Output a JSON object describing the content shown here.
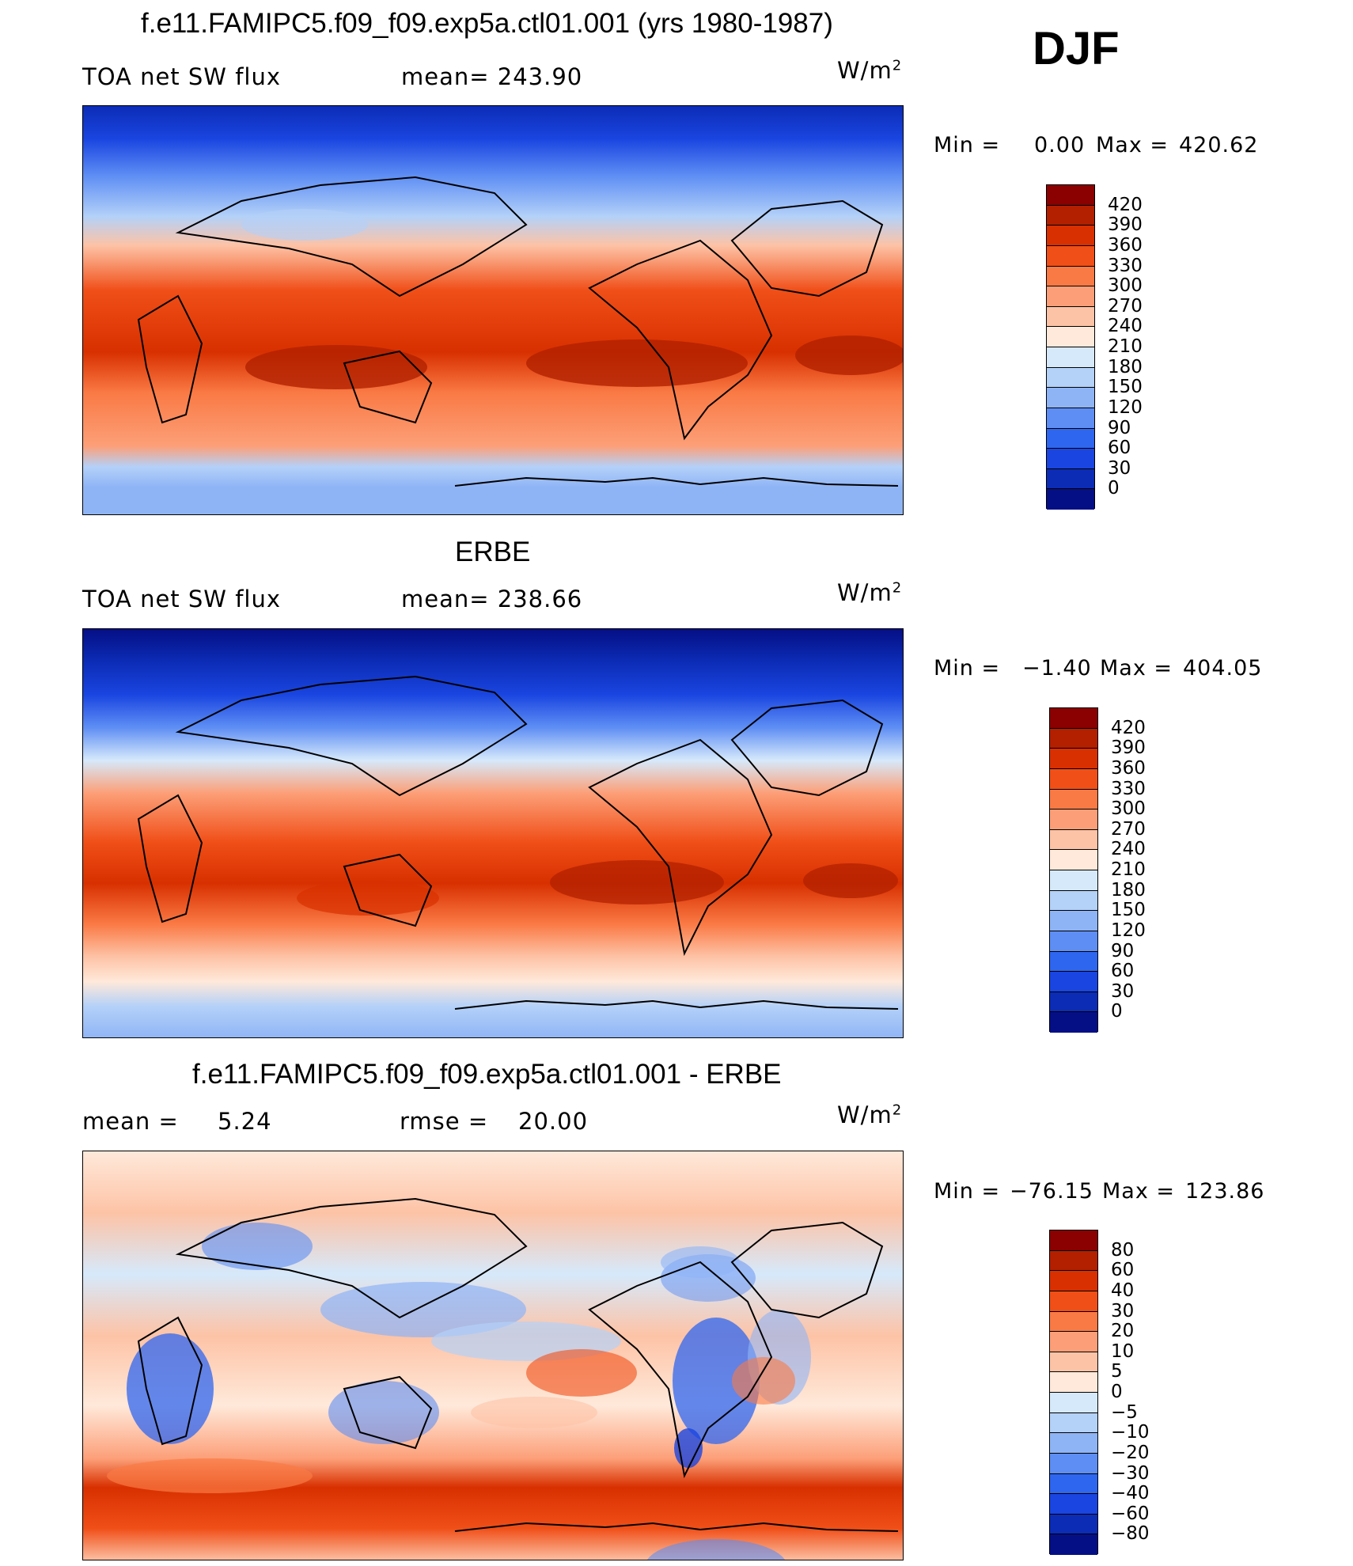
{
  "season": "DJF",
  "units_base": "W/m",
  "units_exp": "2",
  "panel1": {
    "title": "f.e11.FAMIPC5.f09_f09.exp5a.ctl01.001 (yrs 1980-1987)",
    "variable": "TOA net SW flux",
    "mean_label": "mean= 243.90",
    "min_label": "Min =",
    "min_value": "0.00",
    "max_label": "Max =",
    "max_value": "420.62"
  },
  "panel2": {
    "title": "ERBE",
    "variable": "TOA net SW flux",
    "mean_label": "mean= 238.66",
    "min_label": "Min =",
    "min_value": "−1.40",
    "max_label": "Max =",
    "max_value": "404.05"
  },
  "panel3": {
    "title": "f.e11.FAMIPC5.f09_f09.exp5a.ctl01.001 - ERBE",
    "mean_text": "mean =",
    "mean_value": "5.24",
    "rmse_text": "rmse =",
    "rmse_value": "20.00",
    "min_label": "Min =",
    "min_value": "−76.15",
    "max_label": "Max =",
    "max_value": "123.86"
  },
  "colorbar_abs": {
    "labels": [
      "420",
      "390",
      "360",
      "330",
      "300",
      "270",
      "240",
      "210",
      "180",
      "150",
      "120",
      "90",
      "60",
      "30",
      "0"
    ],
    "colors": [
      "#8b0000",
      "#b22000",
      "#d83000",
      "#f04f18",
      "#fa7a45",
      "#fc9f78",
      "#fdc3a6",
      "#ffe9da",
      "#d6e9fb",
      "#b4d1f8",
      "#8fb4f6",
      "#5e8ef4",
      "#2f66f0",
      "#1a45e0",
      "#0c2cb6",
      "#050f85"
    ]
  },
  "colorbar_diff": {
    "labels": [
      "80",
      "60",
      "40",
      "30",
      "20",
      "10",
      "5",
      "0",
      "−5",
      "−10",
      "−20",
      "−30",
      "−40",
      "−60",
      "−80"
    ],
    "colors": [
      "#8b0000",
      "#b22000",
      "#d83000",
      "#f04f18",
      "#fa7a45",
      "#fc9f78",
      "#fdc3a6",
      "#ffe9da",
      "#d6e9fb",
      "#b4d1f8",
      "#8fb4f6",
      "#5e8ef4",
      "#2f66f0",
      "#1a45e0",
      "#0c2cb6",
      "#050f85"
    ]
  }
}
